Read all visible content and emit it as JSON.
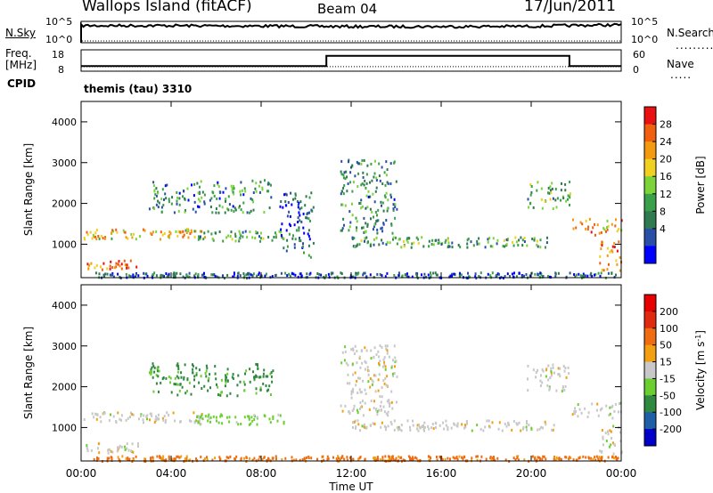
{
  "header": {
    "station": "Wallops Island (fitACF)",
    "beam": "Beam 04",
    "date": "17/Jun/2011"
  },
  "left_labels": {
    "nsky": "N.Sky",
    "freq": "Freq.",
    "freq_unit": "[MHz]",
    "cpid": "CPID"
  },
  "right_labels": {
    "nsearch": "N.Search",
    "nave": "Nave"
  },
  "cpid_text": "themis (tau) 3310",
  "noise_panel": {
    "left_ticks": [
      "10^5",
      "10^0"
    ],
    "right_ticks": [
      "10^5",
      "10^0"
    ]
  },
  "freq_panel": {
    "left_ticks": [
      "18",
      "8"
    ],
    "right_ticks": [
      "60",
      "0"
    ]
  },
  "power_colorbar": {
    "label": "Power [dB]",
    "ticks": [
      "28",
      "24",
      "20",
      "16",
      "12",
      "8",
      "4"
    ],
    "colors": [
      "#0000ff",
      "#2a4fa6",
      "#2f7a50",
      "#3aa04a",
      "#7bd43a",
      "#f0d020",
      "#f39a10",
      "#f06010",
      "#e81010"
    ]
  },
  "velocity_colorbar": {
    "label": "Velocity [m s^-1]",
    "ticks": [
      "200",
      "100",
      "50",
      "15",
      "-15",
      "-50",
      "-100",
      "-200"
    ],
    "colors": [
      "#0000c8",
      "#1f5fa8",
      "#2f8a40",
      "#6bcf32",
      "#c8c8c8",
      "#f3a010",
      "#f06c10",
      "#e02a10",
      "#e60000"
    ]
  },
  "chart_data": [
    {
      "type": "line",
      "title": "Noise",
      "x": [
        "00:00",
        "04:00",
        "08:00",
        "12:00",
        "16:00",
        "20:00",
        "00:00"
      ],
      "series": [
        {
          "name": "N.Sky",
          "values": [
            10000,
            10000,
            8000,
            6000,
            6000,
            7000,
            15000
          ]
        },
        {
          "name": "N.Search",
          "values": [
            1,
            1,
            1,
            1,
            1,
            1,
            1
          ]
        }
      ],
      "ylim": [
        1,
        100000
      ]
    },
    {
      "type": "line",
      "title": "Frequency / Nave",
      "x_hours": [
        0,
        10.9,
        10.9,
        21.7,
        21.7,
        24
      ],
      "series": [
        {
          "name": "Freq.",
          "values": [
            10.2,
            10.2,
            15.4,
            15.4,
            10.2,
            10.2
          ]
        },
        {
          "name": "Nave",
          "values": [
            3,
            3,
            3,
            3,
            3,
            3
          ]
        }
      ],
      "ylim": [
        8,
        18
      ]
    },
    {
      "type": "heatmap",
      "title": "Power",
      "xlabel": "",
      "ylabel": "Slant Range [km]",
      "xlim_hours": [
        0,
        24
      ],
      "ylim": [
        180,
        4500
      ],
      "x_ticks": [
        "00:00",
        "04:00",
        "08:00",
        "12:00",
        "16:00",
        "20:00",
        "00:00"
      ],
      "y_ticks": [
        1000,
        2000,
        3000,
        4000
      ],
      "colorbar": "Power [dB]",
      "bands": [
        {
          "t0": 0.1,
          "t1": 5.5,
          "r0": 1150,
          "r1": 1400,
          "value": 20
        },
        {
          "t0": 0.2,
          "t1": 2.5,
          "r0": 400,
          "r1": 650,
          "value": 24
        },
        {
          "t0": 3.0,
          "t1": 8.5,
          "r0": 1800,
          "r1": 2600,
          "value": 10
        },
        {
          "t0": 5.0,
          "t1": 9.0,
          "r0": 1100,
          "r1": 1350,
          "value": 12
        },
        {
          "t0": 0.5,
          "t1": 24.0,
          "r0": 200,
          "r1": 330,
          "value": 6
        },
        {
          "t0": 8.8,
          "t1": 10.3,
          "r0": 700,
          "r1": 2300,
          "value": 6
        },
        {
          "t0": 11.5,
          "t1": 14.0,
          "r0": 1300,
          "r1": 3100,
          "value": 10
        },
        {
          "t0": 12.0,
          "t1": 21.0,
          "r0": 950,
          "r1": 1200,
          "value": 12
        },
        {
          "t0": 19.8,
          "t1": 21.7,
          "r0": 1900,
          "r1": 2600,
          "value": 12
        },
        {
          "t0": 21.8,
          "t1": 24.0,
          "r0": 1250,
          "r1": 1650,
          "value": 22
        },
        {
          "t0": 23.0,
          "t1": 24.0,
          "r0": 350,
          "r1": 1100,
          "value": 24
        }
      ]
    },
    {
      "type": "heatmap",
      "title": "Velocity",
      "xlabel": "Time UT",
      "ylabel": "Slant Range [km]",
      "xlim_hours": [
        0,
        24
      ],
      "ylim": [
        180,
        4500
      ],
      "x_ticks": [
        "00:00",
        "04:00",
        "08:00",
        "12:00",
        "16:00",
        "20:00",
        "00:00"
      ],
      "y_ticks": [
        1000,
        2000,
        3000,
        4000
      ],
      "colorbar": "Velocity [m s^-1]",
      "bands": [
        {
          "t0": 0.1,
          "t1": 5.5,
          "r0": 1150,
          "r1": 1400,
          "value": 0
        },
        {
          "t0": 0.2,
          "t1": 2.5,
          "r0": 400,
          "r1": 650,
          "value": 0
        },
        {
          "t0": 3.0,
          "t1": 8.5,
          "r0": 1800,
          "r1": 2600,
          "value": 60
        },
        {
          "t0": 5.0,
          "t1": 9.0,
          "r0": 1100,
          "r1": 1350,
          "value": 30
        },
        {
          "t0": 0.5,
          "t1": 24.0,
          "r0": 200,
          "r1": 330,
          "value": -60
        },
        {
          "t0": 11.5,
          "t1": 14.0,
          "r0": 1300,
          "r1": 3100,
          "value": 0
        },
        {
          "t0": 12.0,
          "t1": 21.0,
          "r0": 950,
          "r1": 1200,
          "value": 0
        },
        {
          "t0": 19.8,
          "t1": 21.7,
          "r0": 1900,
          "r1": 2600,
          "value": 0
        },
        {
          "t0": 21.8,
          "t1": 24.0,
          "r0": 1250,
          "r1": 1650,
          "value": 0
        },
        {
          "t0": 23.0,
          "t1": 24.0,
          "r0": 350,
          "r1": 1100,
          "value": 0
        }
      ]
    }
  ],
  "axis": {
    "x_ticks": [
      "00:00",
      "04:00",
      "08:00",
      "12:00",
      "16:00",
      "20:00",
      "00:00"
    ],
    "y_ticks": [
      "1000",
      "2000",
      "3000",
      "4000"
    ],
    "ylabel": "Slant Range [km]",
    "xlabel": "Time UT"
  }
}
